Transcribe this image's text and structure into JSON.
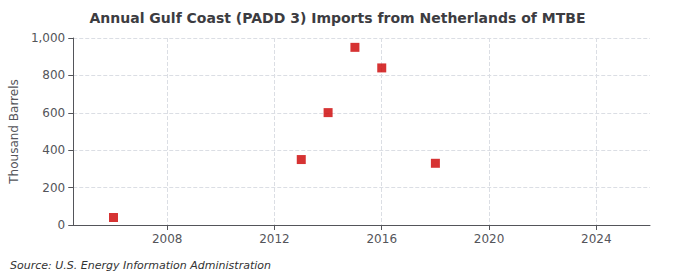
{
  "chart_data": {
    "type": "scatter",
    "title": "Annual Gulf Coast (PADD 3) Imports from Netherlands of MTBE",
    "ylabel": "Thousand Barrels",
    "annotations": [
      "Source: U.S. Energy Information Administration"
    ],
    "x": [
      2006,
      2013,
      2014,
      2015,
      2016,
      2018
    ],
    "values": [
      40,
      350,
      601,
      950,
      840,
      330
    ],
    "color": "#cc0000",
    "marker": "square",
    "xlim": [
      2004.5,
      2026
    ],
    "xticks": [
      2008,
      2012,
      2016,
      2020,
      2024
    ],
    "ylim": [
      0,
      1000
    ],
    "yticks": [
      0,
      200,
      400,
      600,
      800,
      {
        "value": 1000,
        "label": "1,000"
      }
    ],
    "grid": true
  }
}
